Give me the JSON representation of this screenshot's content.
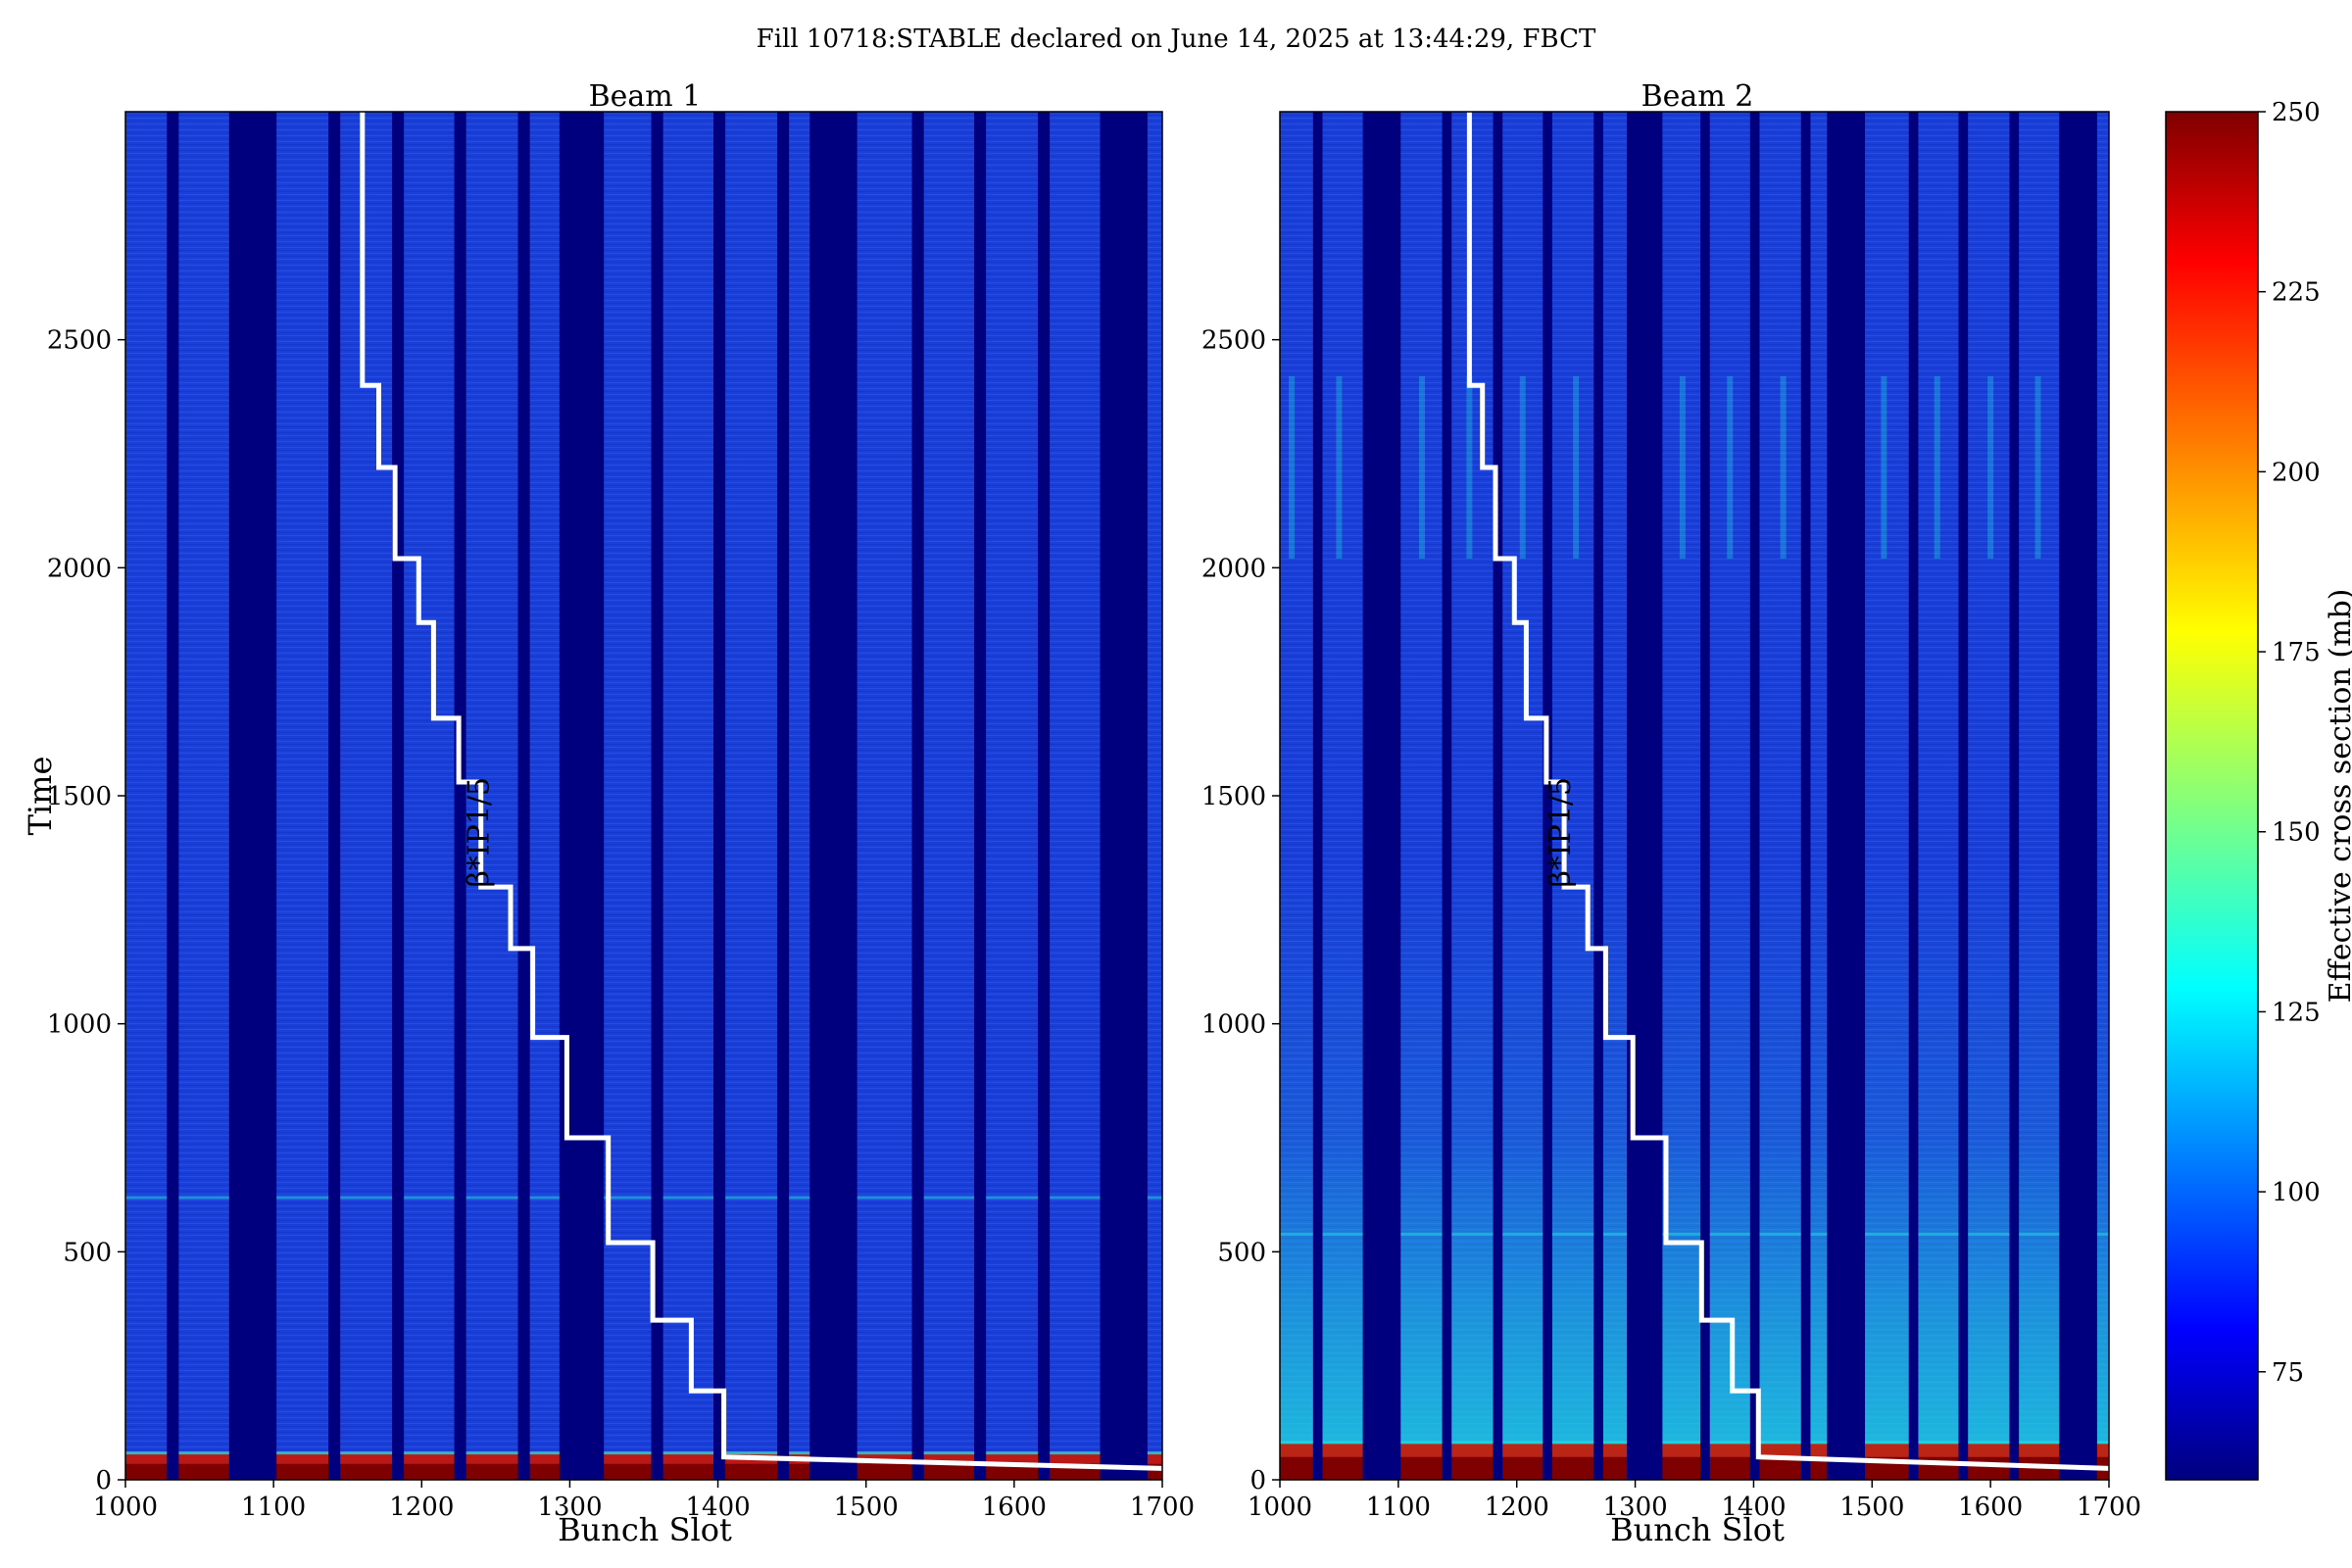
{
  "suptitle": "Fill 10718:STABLE declared on June 14, 2025 at 13:44:29, FBCT",
  "colors": {
    "background_field": "#1a3fd8",
    "gap": "#00007f",
    "high": "#7f0000",
    "red": "#cc1500",
    "cyan": "#20d8e0",
    "staircase": "#ffffff"
  },
  "colorbar": {
    "label": "Effective cross section (mb)",
    "min": 60,
    "max": 250,
    "ticks": [
      "75",
      "100",
      "125",
      "150",
      "175",
      "200",
      "225",
      "250"
    ],
    "tick_values": [
      75,
      100,
      125,
      150,
      175,
      200,
      225,
      250
    ],
    "colormap": "jet"
  },
  "chart_data": [
    {
      "type": "heatmap",
      "title": "Beam 1",
      "xlabel": "Bunch Slot",
      "ylabel": "Time",
      "xlim": [
        1000,
        1700
      ],
      "ylim": [
        0,
        3000
      ],
      "xticks": [
        "1000",
        "1100",
        "1200",
        "1300",
        "1400",
        "1500",
        "1600",
        "1700"
      ],
      "yticks": [
        "0",
        "500",
        "1000",
        "1500",
        "2000",
        "2500"
      ],
      "gaps": [
        [
          1028,
          1036
        ],
        [
          1070,
          1102
        ],
        [
          1137,
          1145
        ],
        [
          1180,
          1188
        ],
        [
          1222,
          1230
        ],
        [
          1265,
          1273
        ],
        [
          1293,
          1323
        ],
        [
          1355,
          1363
        ],
        [
          1397,
          1405
        ],
        [
          1440,
          1448
        ],
        [
          1462,
          1494
        ],
        [
          1531,
          1539
        ],
        [
          1573,
          1581
        ],
        [
          1616,
          1624
        ],
        [
          1658,
          1690
        ]
      ],
      "annotation": "β*IP1/5",
      "staircase": [
        [
          1160,
          3000
        ],
        [
          1160,
          2400
        ],
        [
          1171,
          2400
        ],
        [
          1171,
          2220
        ],
        [
          1182,
          2220
        ],
        [
          1182,
          2020
        ],
        [
          1198,
          2020
        ],
        [
          1198,
          1880
        ],
        [
          1208,
          1880
        ],
        [
          1208,
          1670
        ],
        [
          1225,
          1670
        ],
        [
          1225,
          1530
        ],
        [
          1240,
          1530
        ],
        [
          1240,
          1300
        ],
        [
          1260,
          1300
        ],
        [
          1260,
          1165
        ],
        [
          1275,
          1165
        ],
        [
          1275,
          970
        ],
        [
          1298,
          970
        ],
        [
          1298,
          750
        ],
        [
          1326,
          750
        ],
        [
          1326,
          520
        ],
        [
          1356,
          520
        ],
        [
          1356,
          350
        ],
        [
          1382,
          350
        ],
        [
          1382,
          195
        ],
        [
          1404,
          195
        ],
        [
          1404,
          50
        ],
        [
          1700,
          25
        ]
      ]
    },
    {
      "type": "heatmap",
      "title": "Beam 2",
      "xlabel": "Bunch Slot",
      "ylabel": "",
      "xlim": [
        1000,
        1700
      ],
      "ylim": [
        0,
        3000
      ],
      "xticks": [
        "1000",
        "1100",
        "1200",
        "1300",
        "1400",
        "1500",
        "1600",
        "1700"
      ],
      "yticks": [
        "0",
        "500",
        "1000",
        "1500",
        "2000",
        "2500"
      ],
      "gaps": [
        [
          1028,
          1036
        ],
        [
          1070,
          1102
        ],
        [
          1137,
          1145
        ],
        [
          1180,
          1188
        ],
        [
          1222,
          1230
        ],
        [
          1265,
          1273
        ],
        [
          1293,
          1323
        ],
        [
          1355,
          1363
        ],
        [
          1397,
          1405
        ],
        [
          1440,
          1448
        ],
        [
          1462,
          1494
        ],
        [
          1531,
          1539
        ],
        [
          1573,
          1581
        ],
        [
          1616,
          1624
        ],
        [
          1658,
          1690
        ]
      ],
      "annotation": "β*IP1/5",
      "staircase": [
        [
          1160,
          3000
        ],
        [
          1160,
          2400
        ],
        [
          1171,
          2400
        ],
        [
          1171,
          2220
        ],
        [
          1182,
          2220
        ],
        [
          1182,
          2020
        ],
        [
          1198,
          2020
        ],
        [
          1198,
          1880
        ],
        [
          1208,
          1880
        ],
        [
          1208,
          1670
        ],
        [
          1225,
          1670
        ],
        [
          1225,
          1530
        ],
        [
          1240,
          1530
        ],
        [
          1240,
          1300
        ],
        [
          1260,
          1300
        ],
        [
          1260,
          1165
        ],
        [
          1275,
          1165
        ],
        [
          1275,
          970
        ],
        [
          1298,
          970
        ],
        [
          1298,
          750
        ],
        [
          1326,
          750
        ],
        [
          1326,
          520
        ],
        [
          1356,
          520
        ],
        [
          1356,
          350
        ],
        [
          1382,
          350
        ],
        [
          1382,
          195
        ],
        [
          1404,
          195
        ],
        [
          1404,
          50
        ],
        [
          1700,
          25
        ]
      ]
    }
  ]
}
